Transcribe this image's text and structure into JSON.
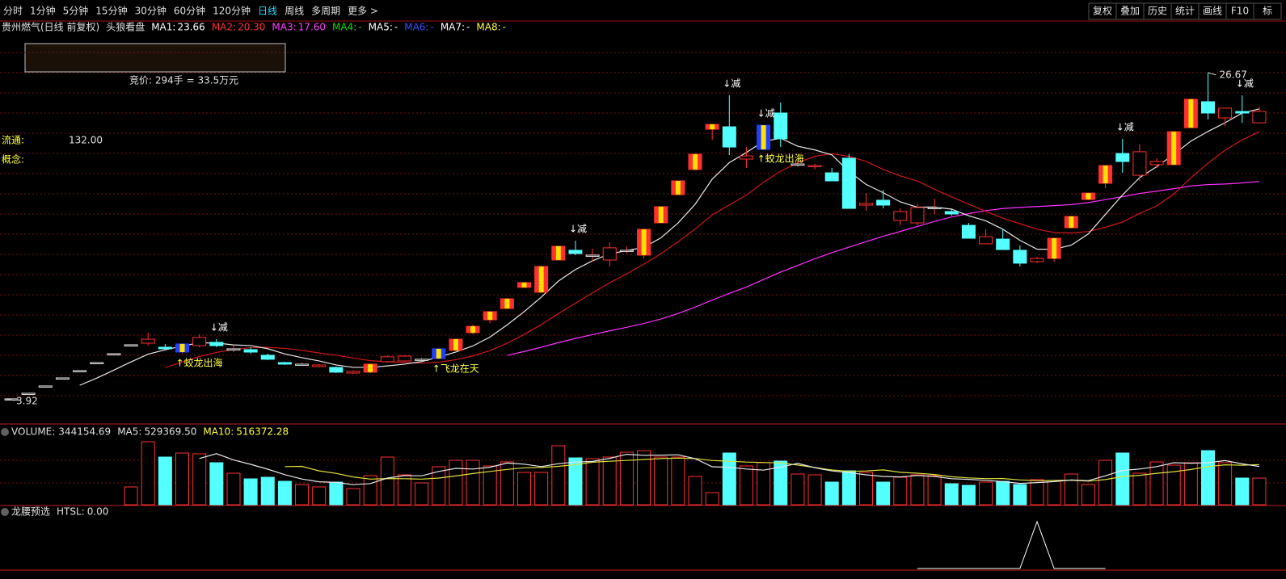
{
  "toolbar": {
    "periods": [
      "分时",
      "1分钟",
      "5分钟",
      "15分钟",
      "30分钟",
      "60分钟",
      "120分钟",
      "日线",
      "周线",
      "多周期",
      "更多 >"
    ],
    "active": 7,
    "buttons": [
      "复权",
      "叠加",
      "历史",
      "统计",
      "画线",
      "F10",
      "标"
    ]
  },
  "header": {
    "stock": "贵州燃气(日线 前复权)",
    "indicator": "头狼看盘",
    "ma": [
      {
        "label": "MA1:",
        "value": "23.66",
        "color": "#ffffff"
      },
      {
        "label": "MA2:",
        "value": "20.30",
        "color": "#ff3030"
      },
      {
        "label": "MA3:",
        "value": "17.60",
        "color": "#ff40ff"
      },
      {
        "label": "MA4:",
        "value": "-",
        "color": "#00e000"
      },
      {
        "label": "MA5:",
        "value": "-",
        "color": "#ffffff"
      },
      {
        "label": "MA6:",
        "value": "-",
        "color": "#3050ff"
      },
      {
        "label": "MA7:",
        "value": "-",
        "color": "#ffffff"
      },
      {
        "label": "MA8:",
        "value": "-",
        "color": "#ffff40"
      }
    ]
  },
  "info": {
    "auction": "竞价: 294手 = 33.5万元",
    "float_label": "流通:",
    "float_value": "132.00",
    "concept_label": "概念:"
  },
  "chart_data": {
    "type": "candlestick",
    "ylim": [
      2.45,
      29.48
    ],
    "up_color": "#ff3030",
    "down_color": "#54ffff",
    "candles": [
      [
        3.92,
        3.92,
        3.92,
        3.92
      ],
      [
        4.31,
        4.31,
        4.31,
        4.31
      ],
      [
        4.82,
        4.82,
        4.82,
        4.82
      ],
      [
        5.38,
        5.38,
        5.38,
        5.38
      ],
      [
        5.89,
        5.89,
        5.89,
        5.89
      ],
      [
        6.45,
        6.45,
        6.45,
        6.45
      ],
      [
        7.07,
        7.07,
        7.07,
        7.07
      ],
      [
        7.69,
        7.69,
        7.69,
        7.69
      ],
      [
        7.8,
        8.53,
        7.63,
        8.08
      ],
      [
        7.52,
        7.75,
        7.35,
        7.41
      ],
      [
        7.18,
        7.8,
        7.07,
        7.75
      ],
      [
        7.63,
        8.42,
        7.52,
        8.2
      ],
      [
        7.86,
        8.08,
        7.52,
        7.63
      ],
      [
        7.41,
        7.63,
        7.18,
        7.41
      ],
      [
        7.35,
        7.52,
        7.07,
        7.18
      ],
      [
        6.96,
        7.07,
        6.62,
        6.68
      ],
      [
        6.45,
        6.51,
        6.28,
        6.34
      ],
      [
        6.34,
        6.45,
        6.28,
        6.34
      ],
      [
        6.17,
        6.34,
        6.11,
        6.28
      ],
      [
        6.11,
        6.17,
        5.72,
        5.78
      ],
      [
        5.72,
        5.89,
        5.66,
        5.83
      ],
      [
        5.78,
        6.4,
        5.72,
        6.34
      ],
      [
        6.51,
        6.96,
        6.45,
        6.85
      ],
      [
        6.56,
        6.96,
        6.51,
        6.9
      ],
      [
        6.68,
        6.79,
        6.62,
        6.68
      ],
      [
        6.73,
        7.41,
        6.68,
        7.41
      ],
      [
        7.3,
        8.08,
        7.3,
        8.08
      ],
      [
        8.53,
        9.09,
        8.42,
        8.98
      ],
      [
        9.43,
        10.0,
        9.2,
        10.0
      ],
      [
        10.22,
        10.9,
        10.22,
        10.9
      ],
      [
        11.69,
        12.03,
        11.69,
        12.03
      ],
      [
        11.35,
        13.15,
        11.35,
        13.15
      ],
      [
        13.6,
        14.56,
        13.6,
        14.56
      ],
      [
        14.28,
        14.95,
        13.94,
        14.05
      ],
      [
        13.94,
        14.39,
        13.49,
        13.94
      ],
      [
        13.6,
        14.84,
        13.15,
        14.45
      ],
      [
        14.28,
        14.56,
        14.05,
        14.28
      ],
      [
        13.94,
        15.74,
        13.72,
        15.74
      ],
      [
        16.19,
        17.32,
        16.19,
        17.32
      ],
      [
        18.16,
        19.12,
        18.16,
        19.12
      ],
      [
        19.91,
        20.98,
        19.91,
        20.98
      ],
      [
        22.72,
        23.06,
        21.98,
        23.06
      ],
      [
        22.89,
        25.09,
        20.92,
        21.48
      ],
      [
        20.64,
        21.48,
        20.02,
        20.86
      ],
      [
        21.31,
        23.0,
        21.31,
        23.0
      ],
      [
        23.85,
        24.58,
        21.48,
        22.05
      ],
      [
        20.3,
        20.64,
        20.08,
        20.3
      ],
      [
        20.13,
        20.3,
        19.91,
        20.19
      ],
      [
        19.68,
        20.02,
        19.12,
        19.12
      ],
      [
        20.7,
        20.98,
        17.2,
        17.2
      ],
      [
        17.43,
        18.27,
        17.03,
        17.54
      ],
      [
        17.77,
        18.49,
        17.2,
        17.43
      ],
      [
        16.36,
        17.2,
        16.02,
        16.98
      ],
      [
        16.19,
        17.54,
        16.02,
        17.26
      ],
      [
        17.26,
        17.88,
        16.81,
        17.26
      ],
      [
        16.98,
        17.2,
        16.7,
        16.81
      ],
      [
        16.02,
        16.19,
        15.12,
        15.12
      ],
      [
        14.73,
        15.74,
        14.73,
        15.23
      ],
      [
        15.06,
        15.74,
        14.33,
        14.33
      ],
      [
        14.28,
        14.61,
        13.15,
        13.38
      ],
      [
        13.49,
        13.83,
        13.38,
        13.71
      ],
      [
        13.71,
        15.12,
        13.49,
        15.12
      ],
      [
        15.85,
        16.64,
        15.85,
        16.64
      ],
      [
        17.82,
        18.27,
        17.82,
        18.27
      ],
      [
        18.95,
        20.19,
        18.61,
        20.19
      ],
      [
        21.03,
        22.05,
        19.68,
        20.47
      ],
      [
        19.51,
        21.69,
        19.12,
        21.15
      ],
      [
        20.25,
        20.7,
        20.02,
        20.47
      ],
      [
        20.25,
        22.55,
        20.25,
        22.55
      ],
      [
        22.83,
        24.81,
        22.83,
        24.81
      ],
      [
        24.64,
        26.67,
        23.4,
        23.85
      ],
      [
        23.51,
        24.19,
        22.95,
        24.19
      ],
      [
        23.96,
        25.09,
        23.17,
        23.85
      ],
      [
        23.17,
        24.3,
        23.17,
        23.96
      ]
    ],
    "fire": [
      21,
      26,
      27,
      28,
      29,
      30,
      31,
      32,
      37,
      38,
      39,
      40,
      41,
      61,
      62,
      63,
      64,
      68,
      69
    ],
    "blue": [
      10,
      25,
      44
    ],
    "annotations": [
      {
        "text": "↓减",
        "index": 12
      },
      {
        "text": "↓减",
        "index": 33
      },
      {
        "text": "↓减",
        "index": 42
      },
      {
        "text": "↓减",
        "index": 44
      },
      {
        "text": "↓减",
        "index": 65
      },
      {
        "text": "↓减",
        "index": 72
      },
      {
        "text": "↑蛟龙出海",
        "index": 10
      },
      {
        "text": "↑蛟龙出海",
        "index": 44
      },
      {
        "text": "↑飞龙在天",
        "index": 25
      }
    ],
    "high_label": {
      "value": 26.67,
      "index": 70
    },
    "low_label": {
      "value": 3.92,
      "index": 0
    }
  },
  "volume": {
    "title": "VOLUME:",
    "value": "344154.69",
    "ma5_label": "MA5:",
    "ma5": "529369.50",
    "ma10_label": "MA10:",
    "ma10": "516372.28",
    "ylim": [
      0,
      1022140
    ],
    "values": [
      null,
      null,
      null,
      null,
      null,
      null,
      null,
      229460,
      813540,
      615370,
      667520,
      657090,
      542360,
      406770,
      333760,
      354620,
      302470,
      260750,
      229460,
      292040,
      208600,
      375480,
      615370,
      385910,
      281610,
      490210,
      573650,
      573650,
      500640,
      552790,
      417200,
      417200,
      761390,
      604940,
      594510,
      615370,
      677950,
      698810,
      615370,
      615370,
      365050,
      156450,
      667520,
      500640,
      542360,
      563220,
      396340,
      385910,
      292040,
      438060,
      417200,
      292040,
      354620,
      385910,
      375480,
      271180,
      250320,
      292040,
      302470,
      260750,
      323330,
      312900,
      396340,
      260750,
      573650,
      667520,
      406770,
      552790,
      511070,
      542360,
      698810,
      542360,
      344190,
      344154.69
    ]
  },
  "htsl": {
    "title": "龙腰预选",
    "label": "HTSL:",
    "value": "0.00",
    "ylim": [
      0,
      1
    ],
    "values": [
      null,
      null,
      null,
      null,
      null,
      null,
      null,
      null,
      null,
      null,
      null,
      null,
      null,
      null,
      null,
      null,
      null,
      null,
      null,
      null,
      null,
      null,
      null,
      null,
      null,
      null,
      null,
      null,
      null,
      null,
      null,
      null,
      null,
      null,
      null,
      null,
      null,
      null,
      null,
      null,
      null,
      null,
      null,
      null,
      null,
      null,
      null,
      null,
      null,
      null,
      null,
      null,
      null,
      0,
      0,
      0,
      0,
      0,
      0,
      0,
      1,
      0,
      0,
      0,
      0,
      null,
      null,
      null,
      null,
      null,
      null,
      null,
      null,
      null
    ]
  }
}
